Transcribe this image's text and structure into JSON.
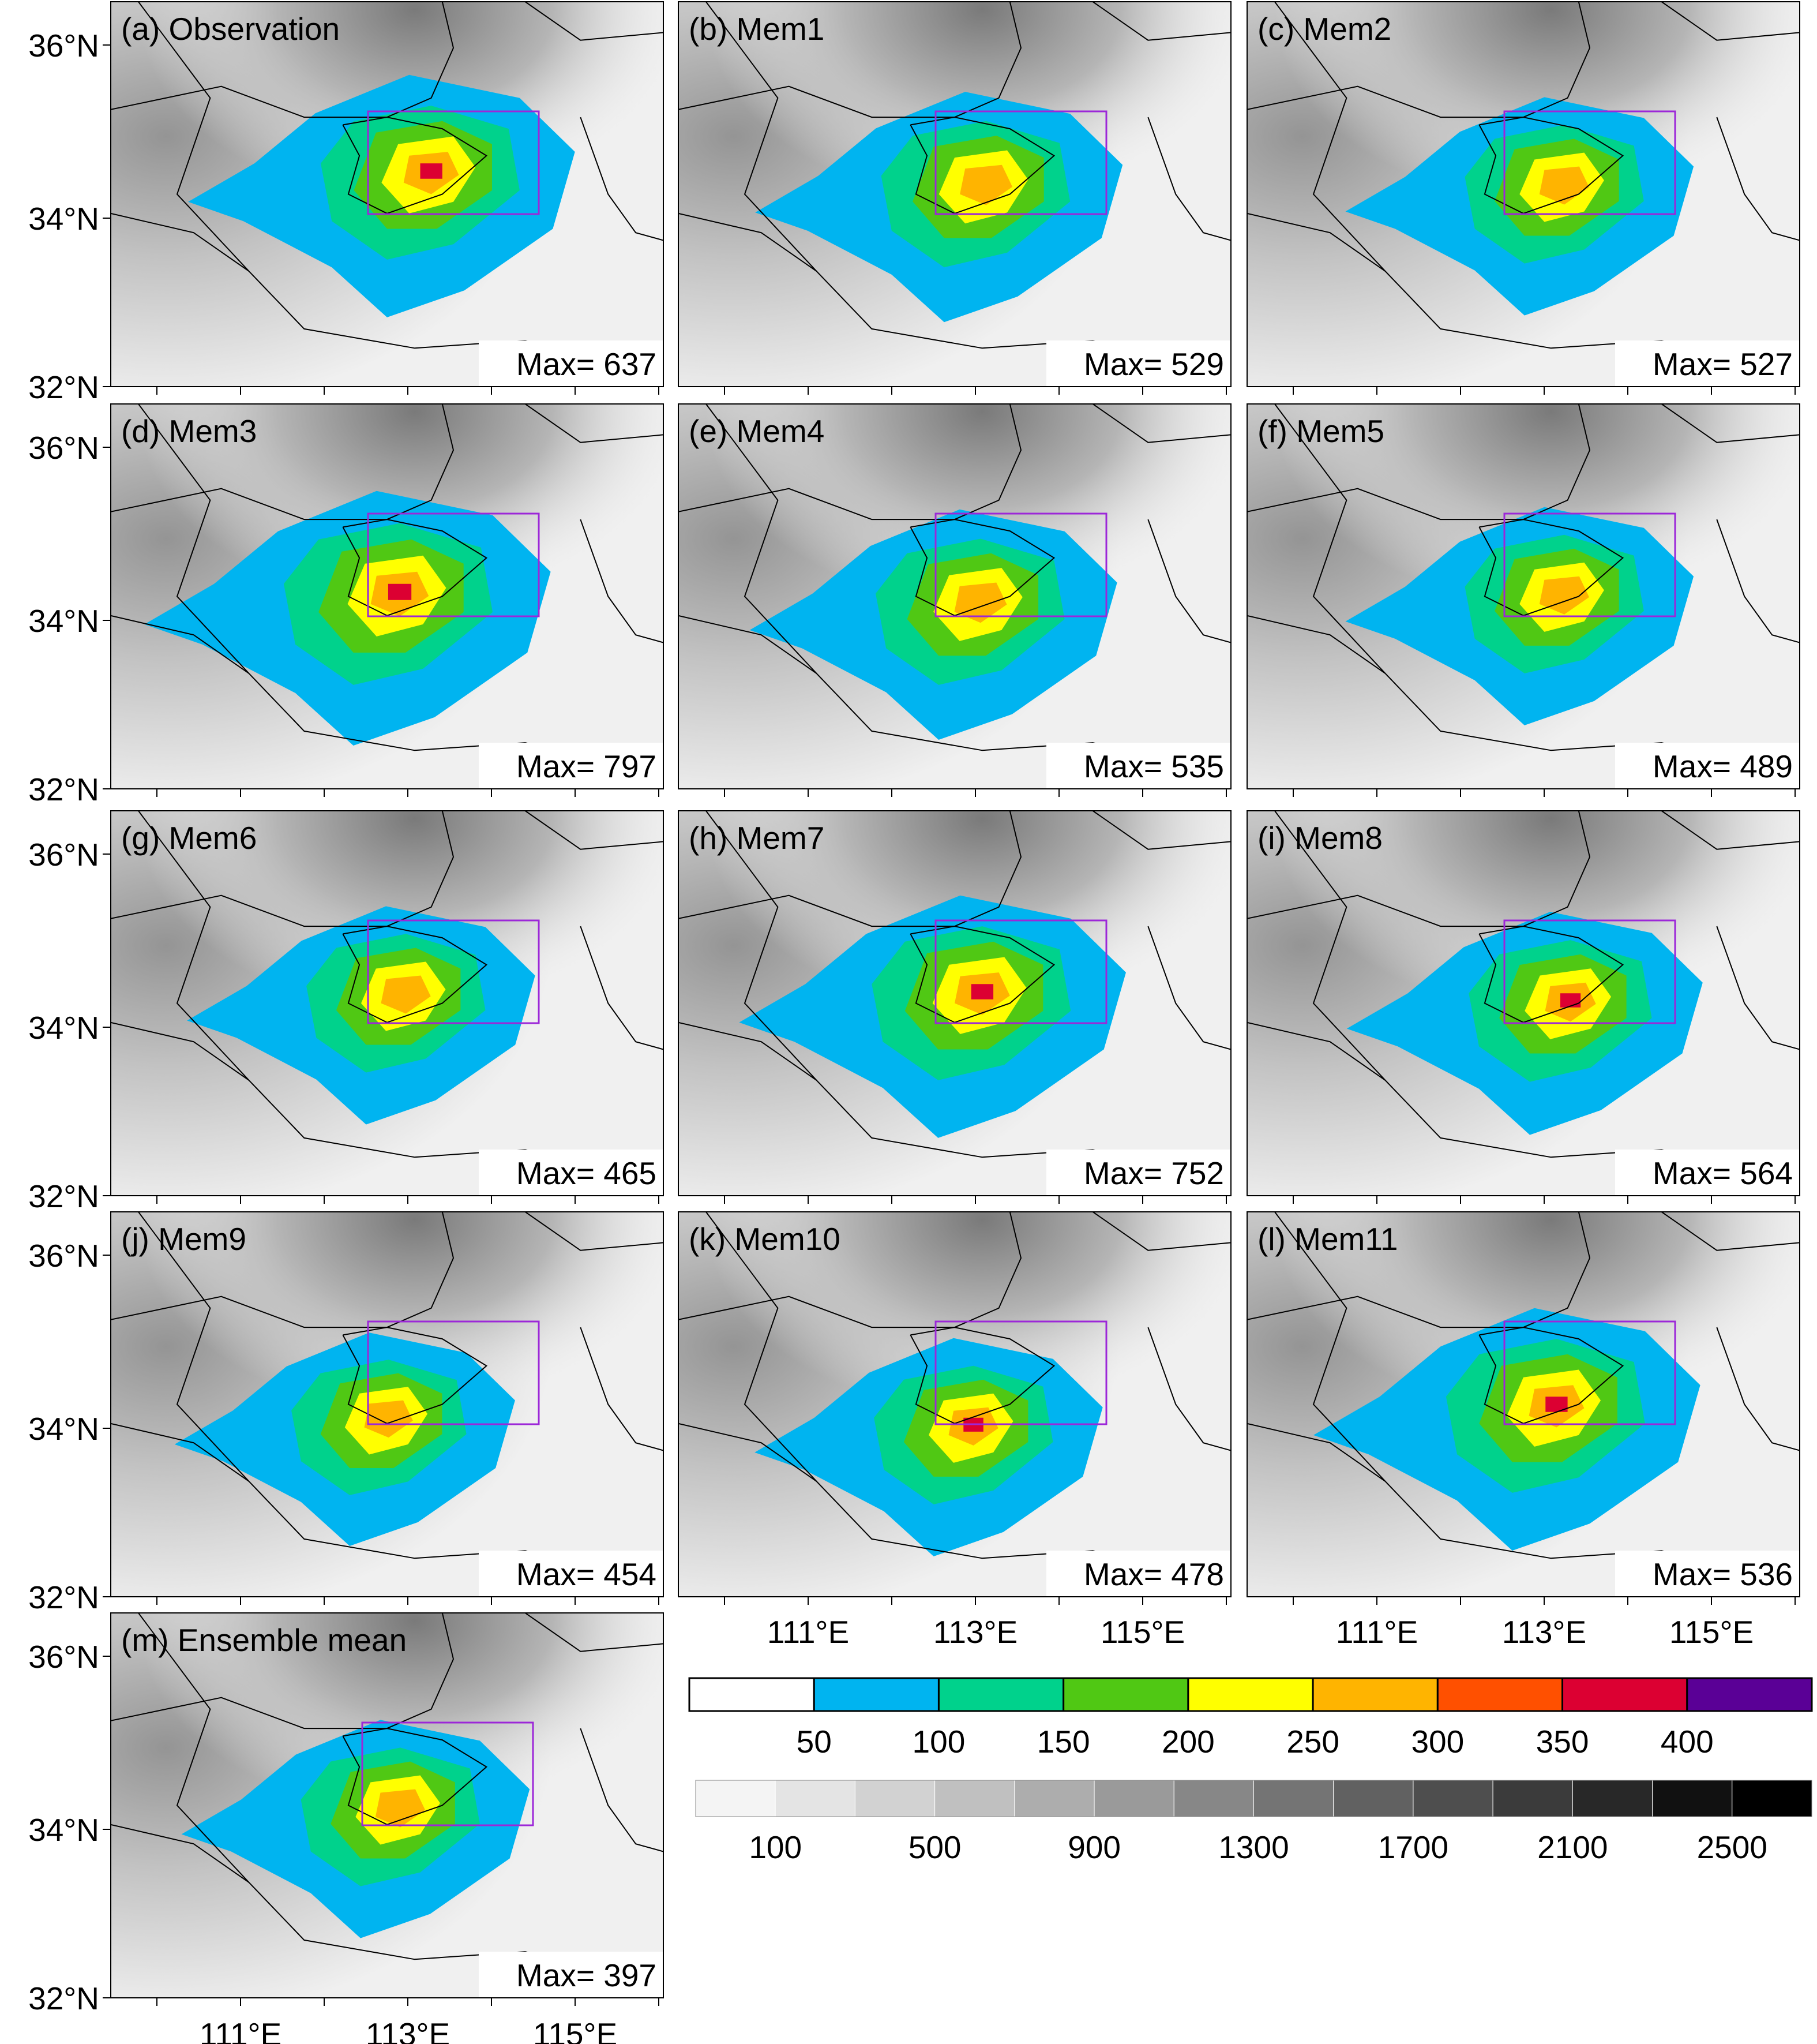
{
  "figure": {
    "lat_ticks": [
      "36°N",
      "34°N",
      "32°N"
    ],
    "lon_ticks": [
      "111°E",
      "113°E",
      "115°E"
    ],
    "max_prefix": "Max= ",
    "panels": [
      {
        "label": "(a) Observation",
        "max": "637"
      },
      {
        "label": "(b) Mem1",
        "max": "529"
      },
      {
        "label": "(c) Mem2",
        "max": "527"
      },
      {
        "label": "(d) Mem3",
        "max": "797"
      },
      {
        "label": "(e) Mem4",
        "max": "535"
      },
      {
        "label": "(f) Mem5",
        "max": "489"
      },
      {
        "label": "(g) Mem6",
        "max": "465"
      },
      {
        "label": "(h) Mem7",
        "max": "752"
      },
      {
        "label": "(i) Mem8",
        "max": "564"
      },
      {
        "label": "(j) Mem9",
        "max": "454"
      },
      {
        "label": "(k) Mem10",
        "max": "478"
      },
      {
        "label": "(l) Mem11",
        "max": "536"
      },
      {
        "label": "(m) Ensemble mean",
        "max": "397"
      }
    ],
    "box_color": "#9c27d8",
    "precip_colorbar": {
      "colors": [
        "#ffffff",
        "#00b4f0",
        "#00d28c",
        "#50c814",
        "#ffff00",
        "#ffb400",
        "#ff5000",
        "#dc0032",
        "#5a0096"
      ],
      "labels": [
        "50",
        "100",
        "150",
        "200",
        "250",
        "300",
        "350",
        "400"
      ]
    },
    "terrain_colorbar": {
      "colors": [
        "#f4f4f4",
        "#e4e4e4",
        "#d2d2d2",
        "#c0c0c0",
        "#adadad",
        "#9a9a9a",
        "#878787",
        "#747474",
        "#616161",
        "#4e4e4e",
        "#3b3b3b",
        "#282828",
        "#111111",
        "#000000"
      ],
      "labels": [
        "100",
        "500",
        "900",
        "1300",
        "1700",
        "2100",
        "2500"
      ]
    }
  }
}
